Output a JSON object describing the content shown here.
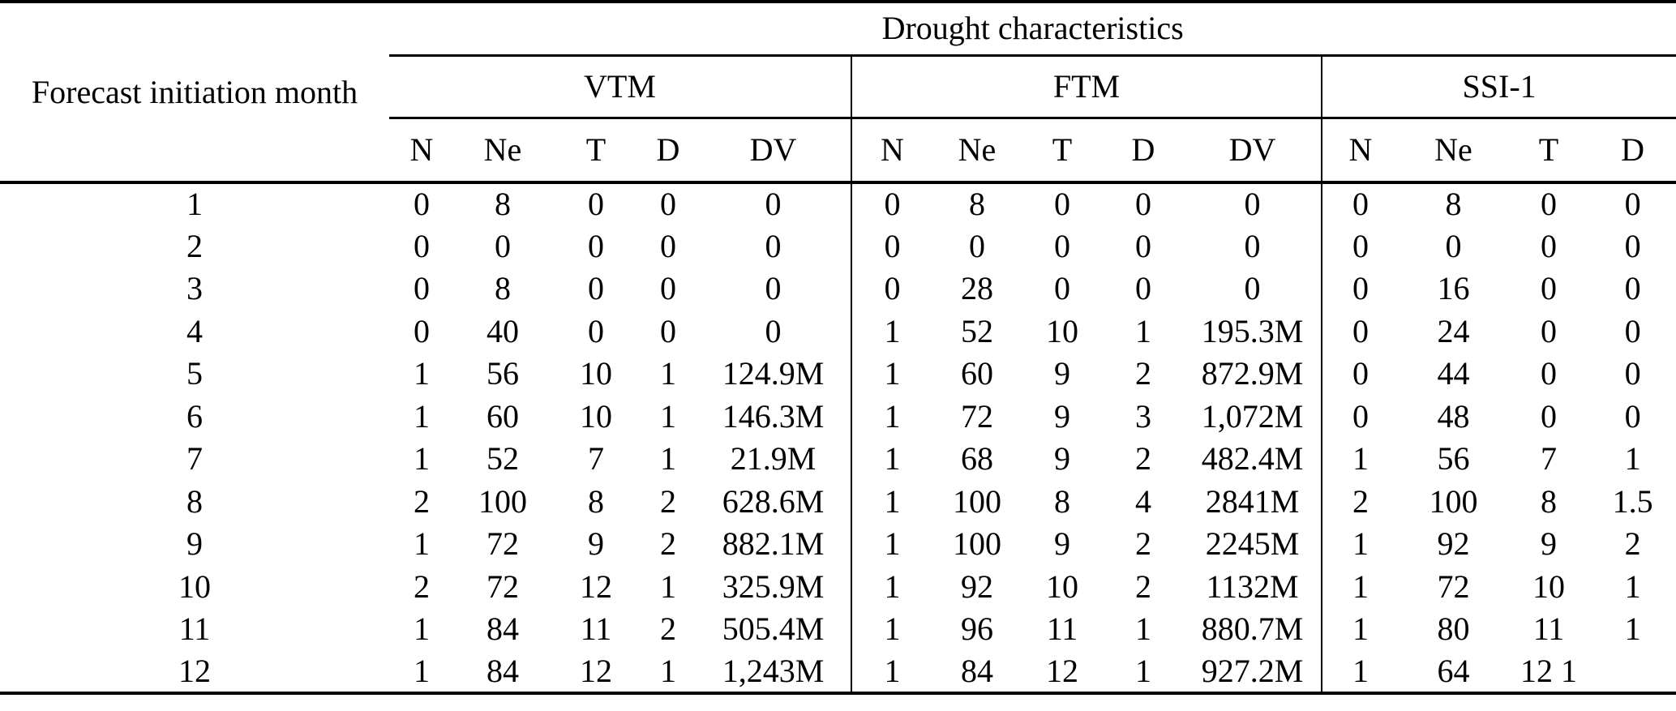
{
  "colors": {
    "text": "#000000",
    "background": "#ffffff",
    "rule": "#000000"
  },
  "table": {
    "col1_header": "Forecast initiation month",
    "group_header": "Drought characteristics",
    "groups": [
      {
        "label": "VTM",
        "columns": [
          "N",
          "Ne",
          "T",
          "D",
          "DV"
        ]
      },
      {
        "label": "FTM",
        "columns": [
          "N",
          "Ne",
          "T",
          "D",
          "DV"
        ]
      },
      {
        "label": "SSI-1",
        "columns": [
          "N",
          "Ne",
          "T",
          "D"
        ]
      }
    ],
    "rows": [
      {
        "month": "1",
        "vtm": [
          "0",
          "8",
          "0",
          "0",
          "0"
        ],
        "ftm": [
          "0",
          "8",
          "0",
          "0",
          "0"
        ],
        "ssi1": [
          "0",
          "8",
          "0",
          "0"
        ]
      },
      {
        "month": "2",
        "vtm": [
          "0",
          "0",
          "0",
          "0",
          "0"
        ],
        "ftm": [
          "0",
          "0",
          "0",
          "0",
          "0"
        ],
        "ssi1": [
          "0",
          "0",
          "0",
          "0"
        ]
      },
      {
        "month": "3",
        "vtm": [
          "0",
          "8",
          "0",
          "0",
          "0"
        ],
        "ftm": [
          "0",
          "28",
          "0",
          "0",
          "0"
        ],
        "ssi1": [
          "0",
          "16",
          "0",
          "0"
        ]
      },
      {
        "month": "4",
        "vtm": [
          "0",
          "40",
          "0",
          "0",
          "0"
        ],
        "ftm": [
          "1",
          "52",
          "10",
          "1",
          "195.3M"
        ],
        "ssi1": [
          "0",
          "24",
          "0",
          "0"
        ]
      },
      {
        "month": "5",
        "vtm": [
          "1",
          "56",
          "10",
          "1",
          "124.9M"
        ],
        "ftm": [
          "1",
          "60",
          "9",
          "2",
          "872.9M"
        ],
        "ssi1": [
          "0",
          "44",
          "0",
          "0"
        ]
      },
      {
        "month": "6",
        "vtm": [
          "1",
          "60",
          "10",
          "1",
          "146.3M"
        ],
        "ftm": [
          "1",
          "72",
          "9",
          "3",
          "1,072M"
        ],
        "ssi1": [
          "0",
          "48",
          "0",
          "0"
        ]
      },
      {
        "month": "7",
        "vtm": [
          "1",
          "52",
          "7",
          "1",
          "21.9M"
        ],
        "ftm": [
          "1",
          "68",
          "9",
          "2",
          "482.4M"
        ],
        "ssi1": [
          "1",
          "56",
          "7",
          "1"
        ]
      },
      {
        "month": "8",
        "vtm": [
          "2",
          "100",
          "8",
          "2",
          "628.6M"
        ],
        "ftm": [
          "1",
          "100",
          "8",
          "4",
          "2841M"
        ],
        "ssi1": [
          "2",
          "100",
          "8",
          "1.5"
        ]
      },
      {
        "month": "9",
        "vtm": [
          "1",
          "72",
          "9",
          "2",
          "882.1M"
        ],
        "ftm": [
          "1",
          "100",
          "9",
          "2",
          "2245M"
        ],
        "ssi1": [
          "1",
          "92",
          "9",
          "2"
        ]
      },
      {
        "month": "10",
        "vtm": [
          "2",
          "72",
          "12",
          "1",
          "325.9M"
        ],
        "ftm": [
          "1",
          "92",
          "10",
          "2",
          "1132M"
        ],
        "ssi1": [
          "1",
          "72",
          "10",
          "1"
        ]
      },
      {
        "month": "11",
        "vtm": [
          "1",
          "84",
          "11",
          "2",
          "505.4M"
        ],
        "ftm": [
          "1",
          "96",
          "11",
          "1",
          "880.7M"
        ],
        "ssi1": [
          "1",
          "80",
          "11",
          "1"
        ]
      },
      {
        "month": "12",
        "vtm": [
          "1",
          "84",
          "12",
          "1",
          "1,243M"
        ],
        "ftm": [
          "1",
          "84",
          "12",
          "1",
          "927.2M"
        ],
        "ssi1": [
          "1",
          "64",
          "12 1",
          ""
        ]
      }
    ]
  }
}
